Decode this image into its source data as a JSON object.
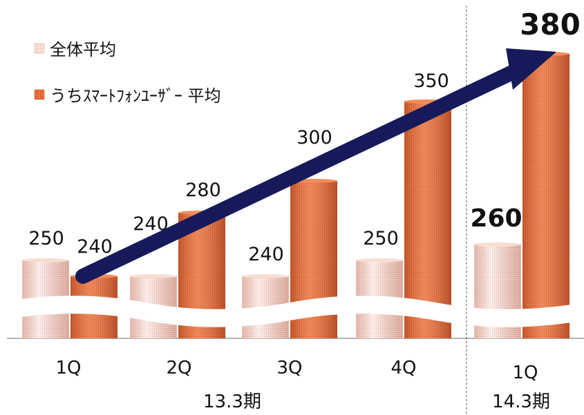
{
  "chart_data": {
    "type": "bar",
    "title": "",
    "xlabel": "",
    "ylabel": "",
    "categories": [
      "1Q",
      "2Q",
      "3Q",
      "4Q",
      "1Q"
    ],
    "groups": [
      {
        "label": "13.3期",
        "categories": [
          "1Q",
          "2Q",
          "3Q",
          "4Q"
        ]
      },
      {
        "label": "14.3期",
        "categories": [
          "1Q"
        ]
      }
    ],
    "series": [
      {
        "name": "全体平均",
        "values": [
          250,
          240,
          240,
          250,
          260
        ],
        "color": "#f4c8b8",
        "style": "light-dotted"
      },
      {
        "name": "うちｽﾏｰﾄﾌｫﾝﾕｰｻﾞｰ 平均",
        "values": [
          240,
          280,
          300,
          350,
          380
        ],
        "color": "#ee6b32",
        "style": "dark-dotted"
      }
    ],
    "emphasized_values": [
      "260",
      "380"
    ],
    "axis_break": true,
    "trend_arrow": {
      "color": "#161a5a",
      "from_category": 0,
      "to_category": 4,
      "series": 1
    },
    "legend_position": "top-left",
    "grid": false
  }
}
